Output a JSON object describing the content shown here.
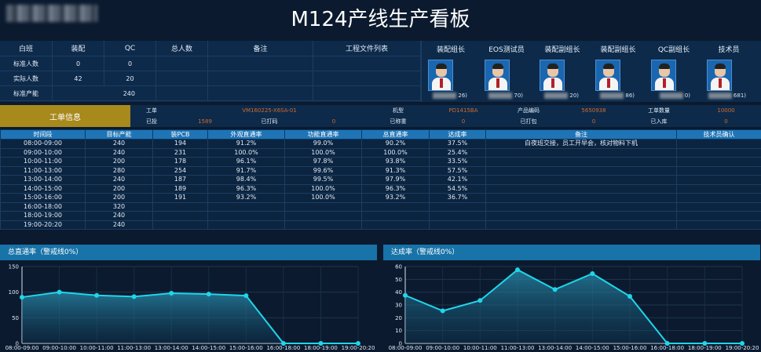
{
  "header": {
    "title": "M124产线生产看板"
  },
  "summary": {
    "headers": [
      "白班",
      "装配",
      "QC",
      "总人数",
      "备注",
      "工程文件列表"
    ],
    "rows": [
      {
        "label": "标准人数",
        "assembly": "0",
        "qc": "0"
      },
      {
        "label": "实际人数",
        "assembly": "42",
        "qc": "20"
      },
      {
        "label": "标准产能",
        "assembly": "",
        "qc": "240"
      }
    ]
  },
  "staff": [
    {
      "role": "装配组长",
      "id_suffix": "26)"
    },
    {
      "role": "EOS测试员",
      "id_suffix": "70)"
    },
    {
      "role": "装配副组长",
      "id_suffix": "20)"
    },
    {
      "role": "装配副组长",
      "id_suffix": "86)"
    },
    {
      "role": "QC副组长",
      "id_suffix": "0)"
    },
    {
      "role": "技术员",
      "id_suffix": "681)"
    }
  ],
  "order": {
    "label": "工单信息",
    "row1": [
      {
        "k": "工单",
        "v": "VM160225-X6SA-01"
      },
      {
        "k": "机型",
        "v": "PD1415BA"
      },
      {
        "k": "产品编码",
        "v": "5650938"
      },
      {
        "k": "工单数量",
        "v": "10000"
      }
    ],
    "row2": [
      {
        "k": "已投",
        "v": "1589"
      },
      {
        "k": "已打码",
        "v": "0"
      },
      {
        "k": "已称重",
        "v": "0"
      },
      {
        "k": "已打包",
        "v": "0"
      },
      {
        "k": "已入库",
        "v": "0"
      }
    ]
  },
  "production": {
    "headers": [
      "时间段",
      "目标产能",
      "装PCB",
      "外观直通率",
      "功能直通率",
      "总直通率",
      "达成率",
      "备注",
      "技术员确认"
    ],
    "rows": [
      [
        "08:00-09:00",
        "240",
        "194",
        "91.2%",
        "99.0%",
        "90.2%",
        "37.5%",
        "白夜班交接，员工开早会，核对物料下机",
        ""
      ],
      [
        "09:00-10:00",
        "240",
        "231",
        "100.0%",
        "100.0%",
        "100.0%",
        "25.4%",
        "",
        ""
      ],
      [
        "10:00-11:00",
        "200",
        "178",
        "96.1%",
        "97.8%",
        "93.8%",
        "33.5%",
        "",
        ""
      ],
      [
        "11:00-13:00",
        "280",
        "254",
        "91.7%",
        "99.6%",
        "91.3%",
        "57.5%",
        "",
        ""
      ],
      [
        "13:00-14:00",
        "240",
        "187",
        "98.4%",
        "99.5%",
        "97.9%",
        "42.1%",
        "",
        ""
      ],
      [
        "14:00-15:00",
        "200",
        "189",
        "96.3%",
        "100.0%",
        "96.3%",
        "54.5%",
        "",
        ""
      ],
      [
        "15:00-16:00",
        "200",
        "191",
        "93.2%",
        "100.0%",
        "93.2%",
        "36.7%",
        "",
        ""
      ],
      [
        "16:00-18:00",
        "320",
        "",
        "",
        "",
        "",
        "",
        "",
        ""
      ],
      [
        "18:00-19:00",
        "240",
        "",
        "",
        "",
        "",
        "",
        "",
        ""
      ],
      [
        "19:00-20:20",
        "240",
        "",
        "",
        "",
        "",
        "",
        "",
        ""
      ]
    ]
  },
  "chart_data": [
    {
      "type": "area",
      "title": "总直通率（警戒线0%）",
      "categories": [
        "08:00-09:00",
        "09:00-10:00",
        "10:00-11:00",
        "11:00-13:00",
        "13:00-14:00",
        "14:00-15:00",
        "15:00-16:00",
        "16:00-18:00",
        "18:00-19:00",
        "19:00-20:20"
      ],
      "values": [
        90.2,
        100.0,
        93.8,
        91.3,
        97.9,
        96.3,
        93.2,
        0,
        0,
        0
      ],
      "ylim": [
        0,
        150
      ],
      "yticks": [
        0,
        50,
        100,
        150
      ],
      "grid": true,
      "color": "#1fd6ea"
    },
    {
      "type": "area",
      "title": "达成率（警戒线0%）",
      "categories": [
        "08:00-09:00",
        "09:00-10:00",
        "10:00-11:00",
        "11:00-13:00",
        "13:00-14:00",
        "14:00-15:00",
        "15:00-16:00",
        "16:00-18:00",
        "18:00-19:00",
        "19:00-20:20"
      ],
      "values": [
        37.5,
        25.4,
        33.5,
        57.5,
        42.1,
        54.5,
        36.7,
        0,
        0,
        0
      ],
      "ylim": [
        0,
        60
      ],
      "yticks": [
        0,
        10,
        20,
        30,
        40,
        50,
        60
      ],
      "grid": true,
      "color": "#1fd6ea"
    }
  ]
}
